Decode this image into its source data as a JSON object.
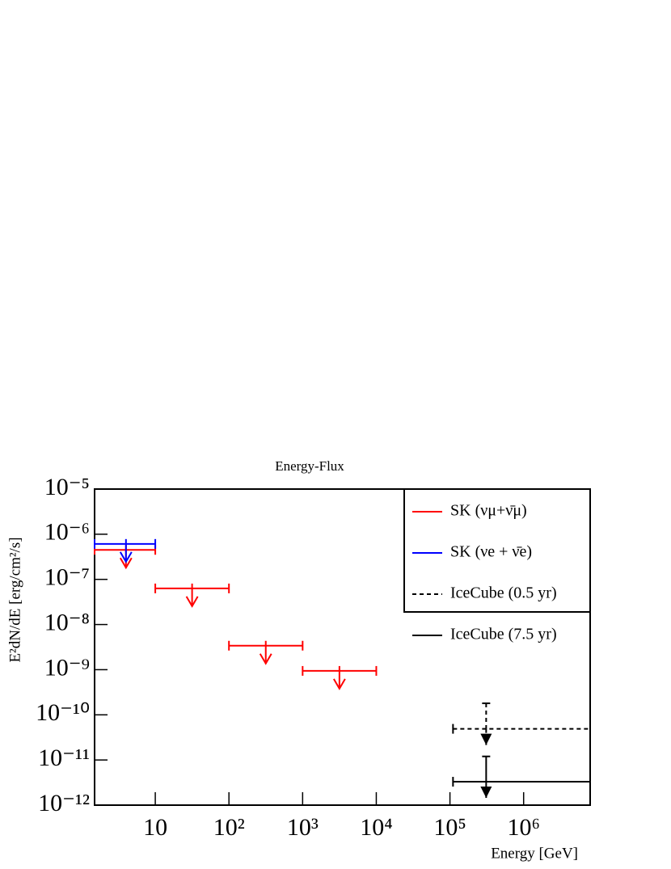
{
  "chart_data": {
    "type": "upper-limit",
    "title": "Energy-Flux",
    "x_label": "Energy [GeV]",
    "y_label": "E²dN/dE [erg/cm²/s]",
    "log_x": true,
    "log_y": true,
    "xlim": [
      1.5,
      8000000
    ],
    "ylim": [
      1e-12,
      1e-05
    ],
    "xticks": [
      10,
      {
        "value": 100,
        "label": "10²"
      },
      {
        "value": 1000,
        "label": "10³"
      },
      {
        "value": 10000,
        "label": "10⁴"
      },
      {
        "value": 100000,
        "label": "10⁵"
      },
      {
        "value": 1000000,
        "label": "10⁶"
      }
    ],
    "yticks": [
      {
        "value": 1e-12,
        "label": "10⁻¹²"
      },
      {
        "value": 1e-11,
        "label": "10⁻¹¹"
      },
      {
        "value": 1e-10,
        "label": "10⁻¹⁰"
      },
      {
        "value": 1e-09,
        "label": "10⁻⁹"
      },
      {
        "value": 1e-08,
        "label": "10⁻⁸"
      },
      {
        "value": 1e-07,
        "label": "10⁻⁷"
      },
      {
        "value": 1e-06,
        "label": "10⁻⁶"
      },
      {
        "value": 1e-05,
        "label": "10⁻⁵"
      }
    ],
    "legend": "upper-right",
    "series": [
      {
        "name": "SK (νμ+ν̄μ)",
        "color": "#ff0000",
        "dash": false,
        "arrow": "open",
        "bin_low": [
          1.5,
          10,
          100,
          1000
        ],
        "bin_high": [
          10,
          100,
          1000,
          10000
        ],
        "arrow_x": [
          4,
          31.6,
          316,
          3160
        ],
        "values": [
          4.5e-07,
          6.3e-08,
          3.4e-09,
          9.4e-10
        ]
      },
      {
        "name": "SK (νe + ν̄e)",
        "color": "#0000ff",
        "dash": false,
        "arrow": "open",
        "bin_low": [
          1.5
        ],
        "bin_high": [
          10
        ],
        "arrow_x": [
          4
        ],
        "values": [
          6.1e-07
        ]
      },
      {
        "name": "IceCube (0.5 yr)",
        "color": "#000000",
        "dash": true,
        "arrow": "filled",
        "bin_low": [
          110000
        ],
        "bin_high": [
          8000000
        ],
        "arrow_x": [
          310000
        ],
        "values": [
          4.9e-11
        ],
        "upper": [
          1.8e-10
        ]
      },
      {
        "name": "IceCube (7.5 yr)",
        "color": "#000000",
        "dash": false,
        "arrow": "filled",
        "bin_low": [
          110000
        ],
        "bin_high": [
          8000000
        ],
        "arrow_x": [
          310000
        ],
        "values": [
          3.3e-12
        ],
        "upper": [
          1.2e-11
        ]
      }
    ]
  }
}
